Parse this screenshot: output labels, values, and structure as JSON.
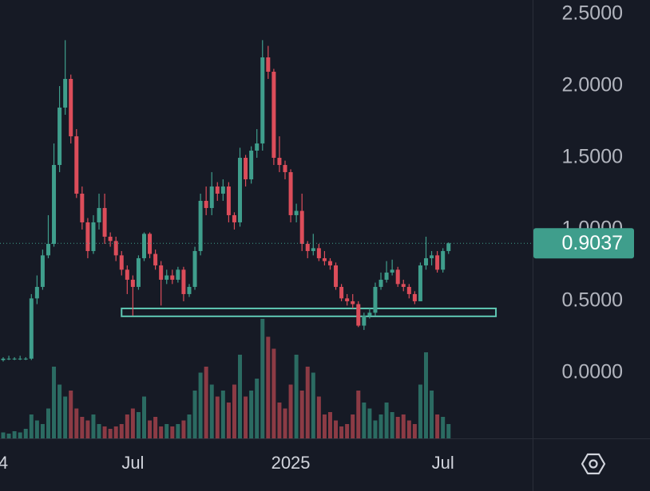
{
  "chart_data": {
    "type": "candlestick",
    "categories": [
      "4",
      null,
      null,
      null,
      null,
      null,
      null,
      null,
      null,
      null,
      null,
      null,
      null,
      null,
      null,
      null,
      null,
      null,
      null,
      null,
      null,
      null,
      null,
      "Jul",
      null,
      null,
      null,
      null,
      null,
      null,
      null,
      null,
      null,
      null,
      null,
      null,
      null,
      null,
      null,
      null,
      null,
      null,
      null,
      null,
      null,
      null,
      null,
      null,
      null,
      null,
      null,
      "2025",
      null,
      null,
      null,
      null,
      null,
      null,
      null,
      null,
      null,
      null,
      null,
      null,
      null,
      null,
      null,
      null,
      null,
      null,
      null,
      null,
      null,
      null,
      null,
      null,
      null,
      null,
      "Jul",
      null
    ],
    "open": [
      0.09,
      0.1,
      0.1,
      0.1,
      0.1,
      0.1,
      0.52,
      0.6,
      0.82,
      0.9,
      1.45,
      1.85,
      2.05,
      1.65,
      1.25,
      1.05,
      0.85,
      1.05,
      1.15,
      0.95,
      0.92,
      0.82,
      0.72,
      0.65,
      0.6,
      0.8,
      0.97,
      0.83,
      0.75,
      0.65,
      0.68,
      0.65,
      0.72,
      0.55,
      0.6,
      0.85,
      1.2,
      1.15,
      1.3,
      1.25,
      1.3,
      1.1,
      1.05,
      1.5,
      1.35,
      1.55,
      1.6,
      2.2,
      2.1,
      1.5,
      1.45,
      1.4,
      1.1,
      1.13,
      0.9,
      0.85,
      0.87,
      0.8,
      0.78,
      0.75,
      0.6,
      0.52,
      0.5,
      0.48,
      0.33,
      0.4,
      0.42,
      0.6,
      0.65,
      0.7,
      0.72,
      0.62,
      0.6,
      0.55,
      0.5,
      0.75,
      0.8,
      0.82,
      0.72,
      0.85
    ],
    "high": [
      0.11,
      0.12,
      0.11,
      0.12,
      0.11,
      0.55,
      0.68,
      0.86,
      1.1,
      1.6,
      2.0,
      2.32,
      2.08,
      1.7,
      1.3,
      1.08,
      1.1,
      1.25,
      1.25,
      0.98,
      0.95,
      0.85,
      0.75,
      0.68,
      0.82,
      0.98,
      0.98,
      0.86,
      0.78,
      0.72,
      0.72,
      0.74,
      0.74,
      0.62,
      0.88,
      1.25,
      1.3,
      1.4,
      1.33,
      1.35,
      1.33,
      1.12,
      1.57,
      1.52,
      1.58,
      1.7,
      2.32,
      2.28,
      2.12,
      1.65,
      1.48,
      1.42,
      1.18,
      1.25,
      0.92,
      0.97,
      0.9,
      0.85,
      0.8,
      0.77,
      0.62,
      0.55,
      0.55,
      0.5,
      0.42,
      0.45,
      0.63,
      0.7,
      0.78,
      0.79,
      0.74,
      0.65,
      0.62,
      0.57,
      0.77,
      0.95,
      0.85,
      0.85,
      0.87,
      0.91
    ],
    "low": [
      0.08,
      0.09,
      0.09,
      0.09,
      0.09,
      0.09,
      0.48,
      0.58,
      0.8,
      0.88,
      1.4,
      1.8,
      1.6,
      1.22,
      1.0,
      0.8,
      0.83,
      1.0,
      0.9,
      0.88,
      0.78,
      0.68,
      0.55,
      0.4,
      0.58,
      0.78,
      0.8,
      0.72,
      0.47,
      0.62,
      0.62,
      0.63,
      0.5,
      0.53,
      0.58,
      0.82,
      1.1,
      1.1,
      1.2,
      1.2,
      1.05,
      1.0,
      1.02,
      1.3,
      1.32,
      1.5,
      1.55,
      2.05,
      1.45,
      1.4,
      1.35,
      1.05,
      1.05,
      0.85,
      0.8,
      0.82,
      0.78,
      0.75,
      0.72,
      0.58,
      0.5,
      0.47,
      0.45,
      0.32,
      0.3,
      0.38,
      0.4,
      0.58,
      0.63,
      0.68,
      0.6,
      0.57,
      0.52,
      0.48,
      0.5,
      0.72,
      0.75,
      0.7,
      0.7,
      0.83
    ],
    "close": [
      0.1,
      0.1,
      0.1,
      0.1,
      0.1,
      0.52,
      0.6,
      0.82,
      0.9,
      1.45,
      1.85,
      2.05,
      1.65,
      1.25,
      1.05,
      0.85,
      1.05,
      1.15,
      0.95,
      0.92,
      0.82,
      0.72,
      0.65,
      0.6,
      0.8,
      0.97,
      0.83,
      0.75,
      0.65,
      0.68,
      0.65,
      0.72,
      0.55,
      0.6,
      0.85,
      1.2,
      1.15,
      1.3,
      1.25,
      1.3,
      1.1,
      1.05,
      1.5,
      1.35,
      1.55,
      1.6,
      2.2,
      2.1,
      1.5,
      1.45,
      1.4,
      1.1,
      1.13,
      0.9,
      0.85,
      0.87,
      0.8,
      0.78,
      0.75,
      0.6,
      0.52,
      0.5,
      0.48,
      0.33,
      0.4,
      0.42,
      0.6,
      0.65,
      0.7,
      0.72,
      0.62,
      0.6,
      0.55,
      0.5,
      0.75,
      0.8,
      0.82,
      0.72,
      0.85,
      0.9037
    ],
    "volume": [
      5,
      4,
      6,
      5,
      8,
      20,
      15,
      12,
      25,
      60,
      45,
      35,
      40,
      25,
      18,
      15,
      20,
      12,
      10,
      8,
      10,
      12,
      20,
      25,
      22,
      35,
      15,
      18,
      10,
      12,
      10,
      12,
      15,
      20,
      40,
      55,
      60,
      45,
      35,
      40,
      30,
      45,
      70,
      35,
      40,
      50,
      100,
      85,
      75,
      30,
      25,
      45,
      70,
      40,
      60,
      55,
      35,
      20,
      22,
      15,
      10,
      12,
      20,
      40,
      30,
      25,
      15,
      20,
      30,
      22,
      18,
      20,
      15,
      12,
      45,
      72,
      40,
      20,
      18,
      12
    ],
    "up_color": "#3f9e8c",
    "down_color": "#dc4d5a",
    "volume_up_color": "#2b6b62",
    "volume_down_color": "#8c3b45",
    "ylim": [
      -0.456,
      2.6
    ],
    "yticks": [
      {
        "value": 2.5,
        "label": "2.5000"
      },
      {
        "value": 2.0,
        "label": "2.0000"
      },
      {
        "value": 1.5,
        "label": "1.5000"
      },
      {
        "value": 1.0,
        "label": "1.0000"
      },
      {
        "value": 0.5,
        "label": "0.5000"
      },
      {
        "value": 0.0,
        "label": "0.0000"
      }
    ],
    "last_price": 0.9037,
    "zone": {
      "low": 0.395,
      "high": 0.45,
      "start": 21,
      "end": 87.4,
      "color": "#5fc7b3"
    }
  }
}
